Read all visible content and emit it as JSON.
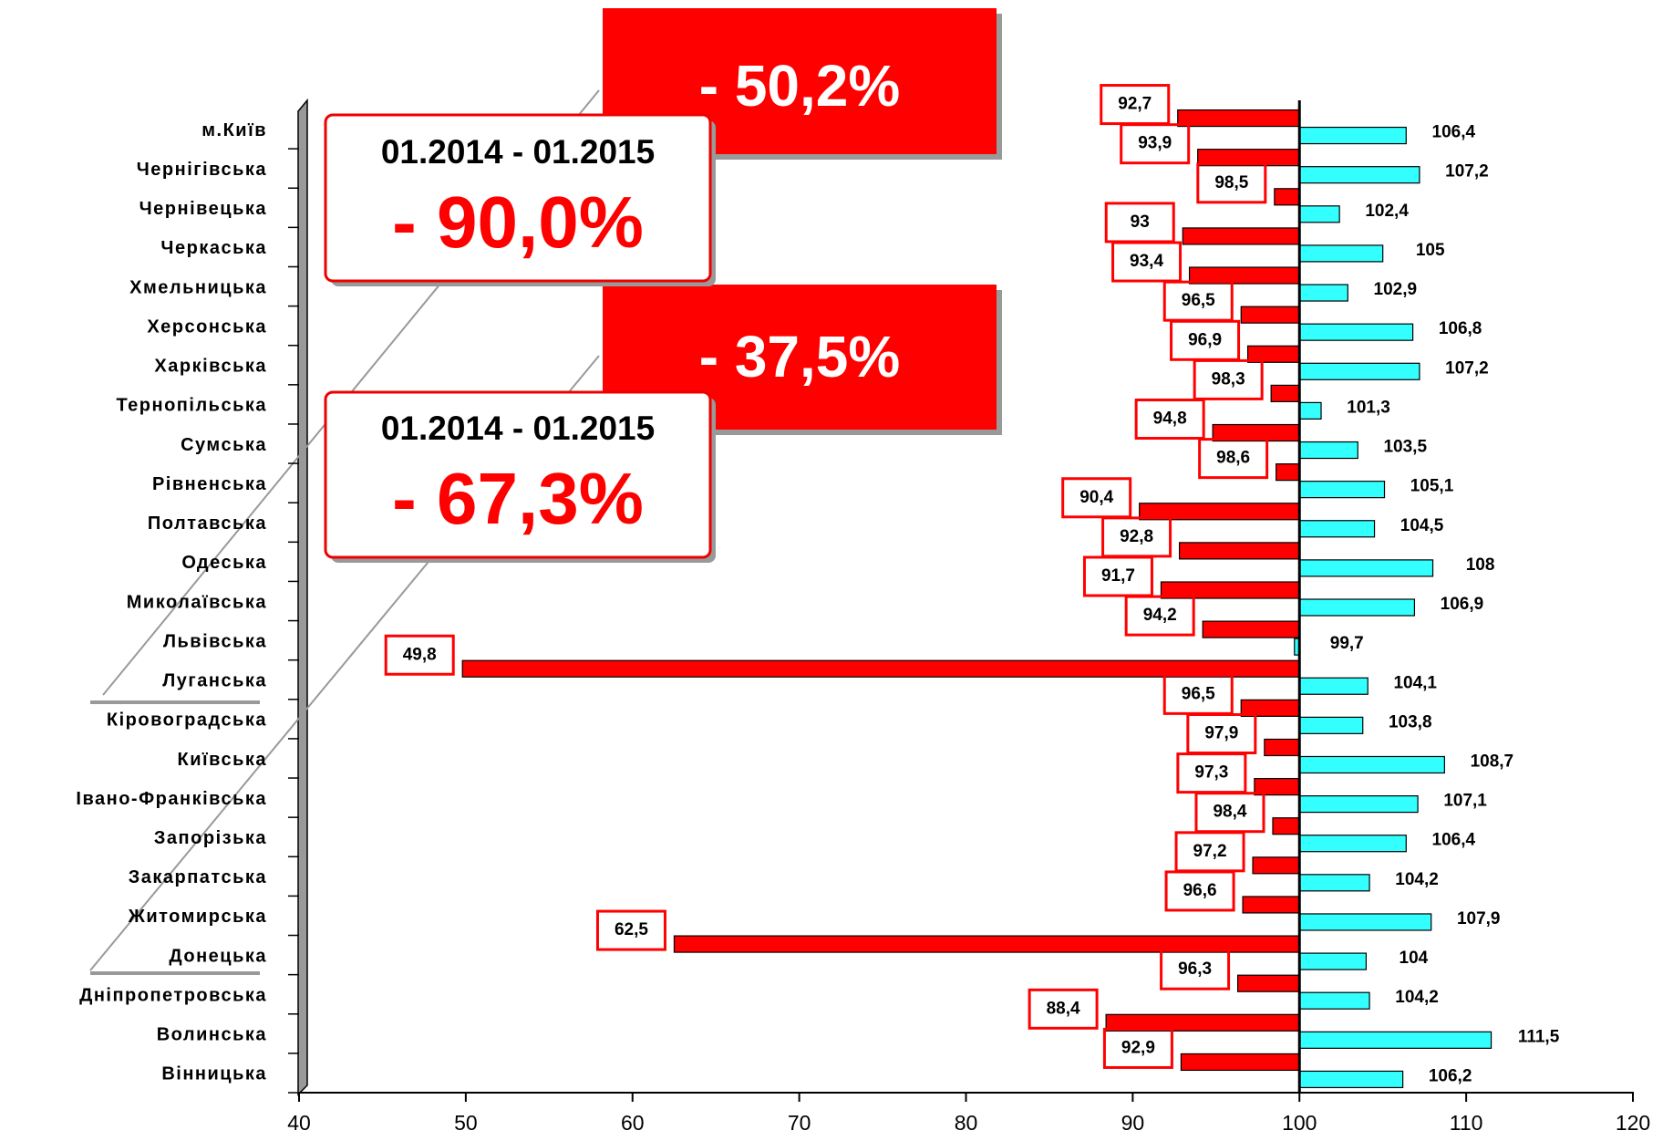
{
  "chart_data": {
    "type": "bar",
    "orientation": "horizontal",
    "base": 100,
    "categories": [
      "м.Київ",
      "Чернігівська",
      "Чернівецька",
      "Черкаська",
      "Хмельницька",
      "Херсонська",
      "Харківська",
      "Тернопільська",
      "Сумська",
      "Рівненська",
      "Полтавська",
      "Одеська",
      "Миколаївська",
      "Львівська",
      "Луганська",
      "Кіровоградська",
      "Київська",
      "Івано-Франківська",
      "Запорізька",
      "Закарпатська",
      "Житомирська",
      "Донецька",
      "Дніпропетровська",
      "Волинська",
      "Вінницька"
    ],
    "series": [
      {
        "color": "#ff0000",
        "values": [
          92.7,
          93.9,
          98.5,
          93,
          93.4,
          96.5,
          96.9,
          98.3,
          94.8,
          98.6,
          90.4,
          92.8,
          91.7,
          94.2,
          49.8,
          96.5,
          97.9,
          97.3,
          98.4,
          97.2,
          96.6,
          62.5,
          96.3,
          88.4,
          92.9
        ],
        "value_labels": [
          "92,7",
          "93,9",
          "98,5",
          "93",
          "93,4",
          "96,5",
          "96,9",
          "98,3",
          "94,8",
          "98,6",
          "90,4",
          "92,8",
          "91,7",
          "94,2",
          "49,8",
          "96,5",
          "97,9",
          "97,3",
          "98,4",
          "97,2",
          "96,6",
          "62,5",
          "96,3",
          "88,4",
          "92,9"
        ]
      },
      {
        "color": "#33ffff",
        "values": [
          106.4,
          107.2,
          102.4,
          105,
          102.9,
          106.8,
          107.2,
          101.3,
          103.5,
          105.1,
          104.5,
          108,
          106.9,
          99.7,
          104.1,
          103.8,
          108.7,
          107.1,
          106.4,
          104.2,
          107.9,
          104,
          104.2,
          111.5,
          106.2
        ],
        "value_labels": [
          "106,4",
          "107,2",
          "102,4",
          "105",
          "102,9",
          "106,8",
          "107,2",
          "101,3",
          "103,5",
          "105,1",
          "104,5",
          "108",
          "106,9",
          "99,7",
          "104,1",
          "103,8",
          "108,7",
          "107,1",
          "106,4",
          "104,2",
          "107,9",
          "104",
          "104,2",
          "111,5",
          "106,2"
        ]
      }
    ],
    "xlim": [
      40,
      120
    ],
    "xticks": [
      40,
      50,
      60,
      70,
      80,
      90,
      100,
      110,
      120
    ],
    "annotations": [
      {
        "period": "01.2014  -  01.2015",
        "text": "- 90,0%"
      },
      {
        "text": "- 50,2%"
      },
      {
        "period": "01.2014  -  01.2015",
        "text": "- 67,3%"
      },
      {
        "text": "- 37,5%"
      }
    ]
  }
}
